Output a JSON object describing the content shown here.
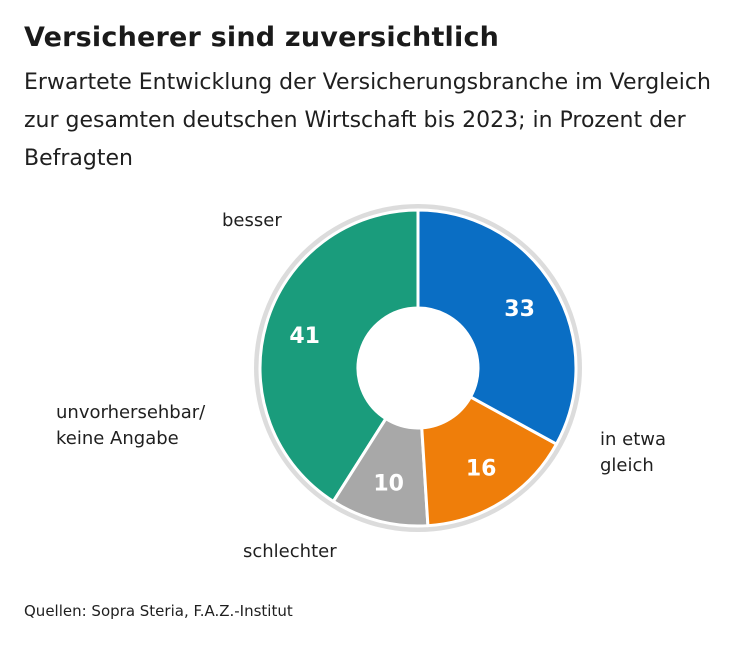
{
  "title": "Versicherer sind zuversichtlich",
  "subtitle": "Erwartete Entwicklung der Versicherungsbranche im Vergleich zur gesamten deutschen Wirtschaft bis 2023; in Prozent der Befragten",
  "source": "Quellen: Sopra Steria, F.A.Z.-Institut",
  "chart_data": {
    "type": "pie",
    "variant": "donut",
    "unit": "%",
    "start_angle_deg": -90,
    "direction": "counterclockwise",
    "slices": [
      {
        "label": "besser",
        "value": 41,
        "color": "#1a9c7c",
        "label_lines": [
          "besser"
        ]
      },
      {
        "label": "unvorhersehbar/ keine Angabe",
        "value": 10,
        "color": "#a8a8a8",
        "label_lines": [
          "unvorhersehbar/",
          "keine Angabe"
        ]
      },
      {
        "label": "schlechter",
        "value": 16,
        "color": "#ef7e0a",
        "label_lines": [
          "schlechter"
        ]
      },
      {
        "label": "in etwa gleich",
        "value": 33,
        "color": "#0a6ec4",
        "label_lines": [
          "in etwa",
          "gleich"
        ]
      }
    ],
    "outer_ring_color": "#dcdcdc",
    "value_label_color": "#ffffff"
  }
}
